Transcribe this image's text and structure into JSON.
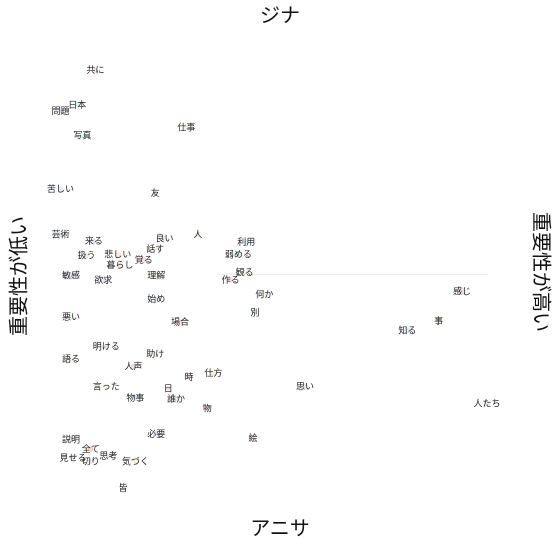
{
  "chart_data": {
    "type": "scatter",
    "title": "",
    "labels": {
      "top": "ジナ",
      "bottom": "アニサ",
      "left": "重要性が低い",
      "right": "重要性が高い"
    },
    "xlim": [
      0,
      10
    ],
    "ylim": [
      0,
      10
    ],
    "grid": false,
    "points": [
      {
        "label": "共に",
        "x": 1.45,
        "y": 9.26,
        "r": 0.2,
        "color": "#f0d8d8"
      },
      {
        "label": "日本",
        "x": 1.1,
        "y": 8.53,
        "r": 0.22,
        "color": "#d6f0f5"
      },
      {
        "label": "問題",
        "x": 0.78,
        "y": 8.4,
        "r": 0.2,
        "color": "#dbe6f6"
      },
      {
        "label": "写真",
        "x": 1.2,
        "y": 7.88,
        "r": 0.2,
        "color": "#d6f0f5"
      },
      {
        "label": "仕事",
        "x": 3.2,
        "y": 8.05,
        "r": 0.21,
        "color": "#dff3dc"
      },
      {
        "label": "苦しい",
        "x": 0.78,
        "y": 6.76,
        "r": 0.2,
        "color": "#dbe6f6"
      },
      {
        "label": "友",
        "x": 2.6,
        "y": 6.67,
        "r": 0.2,
        "color": "#f7dff0"
      },
      {
        "label": "芸術",
        "x": 0.78,
        "y": 5.8,
        "r": 0.2,
        "color": "#dbe6f6"
      },
      {
        "label": "来る",
        "x": 1.42,
        "y": 5.66,
        "r": 0.2,
        "color": "#e3dcef"
      },
      {
        "label": "良い",
        "x": 2.78,
        "y": 5.72,
        "r": 0.2,
        "color": "#e6e6e6"
      },
      {
        "label": "人",
        "x": 3.42,
        "y": 5.8,
        "r": 0.21,
        "color": "#f1f2d8"
      },
      {
        "label": "利用",
        "x": 4.35,
        "y": 5.64,
        "r": 0.21,
        "color": "#d6f0f5"
      },
      {
        "label": "話す",
        "x": 2.6,
        "y": 5.5,
        "r": 0.2,
        "color": "#f8e8d5"
      },
      {
        "label": "扱う",
        "x": 1.28,
        "y": 5.36,
        "r": 0.2,
        "color": "#e6e6e6"
      },
      {
        "label": "悲しい",
        "x": 1.88,
        "y": 5.38,
        "r": 0.22,
        "color": "#f8e8d5"
      },
      {
        "label": "暮らし",
        "x": 1.92,
        "y": 5.16,
        "r": 0.22,
        "color": "#f8e8d5"
      },
      {
        "label": "覚る",
        "x": 2.38,
        "y": 5.26,
        "r": 0.21,
        "color": "#fad7d7"
      },
      {
        "label": "弱める",
        "x": 4.2,
        "y": 5.38,
        "r": 0.22,
        "color": "#d6f0f5"
      },
      {
        "label": "観る",
        "x": 4.32,
        "y": 5.0,
        "r": 0.21,
        "color": "#dff3dc"
      },
      {
        "label": "敏感",
        "x": 0.98,
        "y": 4.94,
        "r": 0.21,
        "color": "#e3dcef"
      },
      {
        "label": "欲求",
        "x": 1.6,
        "y": 4.84,
        "r": 0.21,
        "color": "#dbe6f6"
      },
      {
        "label": "理解",
        "x": 2.62,
        "y": 4.94,
        "r": 0.21,
        "color": "#f1f2d8"
      },
      {
        "label": "作る",
        "x": 4.05,
        "y": 4.84,
        "r": 0.21,
        "color": "#fad7d7"
      },
      {
        "label": "感じ",
        "x": 8.5,
        "y": 4.6,
        "r": 0.28,
        "color": "#e6d8d8"
      },
      {
        "label": "何か",
        "x": 4.7,
        "y": 4.54,
        "r": 0.21,
        "color": "#f1f2d8"
      },
      {
        "label": "始め",
        "x": 2.62,
        "y": 4.44,
        "r": 0.21,
        "color": "#d6f0f5"
      },
      {
        "label": "別",
        "x": 4.52,
        "y": 4.16,
        "r": 0.21,
        "color": "#d6f0f5"
      },
      {
        "label": "悪い",
        "x": 0.98,
        "y": 4.06,
        "r": 0.2,
        "color": "#dff3dc"
      },
      {
        "label": "場合",
        "x": 3.08,
        "y": 3.96,
        "r": 0.21,
        "color": "#fad7d7"
      },
      {
        "label": "事",
        "x": 8.05,
        "y": 3.98,
        "r": 0.28,
        "color": "#f1f2d8"
      },
      {
        "label": "知る",
        "x": 7.45,
        "y": 3.78,
        "r": 0.26,
        "color": "#dbe6f6"
      },
      {
        "label": "明ける",
        "x": 1.66,
        "y": 3.44,
        "r": 0.21,
        "color": "#e6d8d8"
      },
      {
        "label": "語る",
        "x": 0.98,
        "y": 3.18,
        "r": 0.2,
        "color": "#dff3dc"
      },
      {
        "label": "助け",
        "x": 2.6,
        "y": 3.28,
        "r": 0.21,
        "color": "#f1f2d8"
      },
      {
        "label": "人声",
        "x": 2.18,
        "y": 3.02,
        "r": 0.21,
        "color": "#e6d8d8"
      },
      {
        "label": "仕方",
        "x": 3.72,
        "y": 2.88,
        "r": 0.21,
        "color": "#f8e8d5"
      },
      {
        "label": "時",
        "x": 3.25,
        "y": 2.8,
        "r": 0.21,
        "color": "#f7dff0"
      },
      {
        "label": "思い",
        "x": 5.48,
        "y": 2.6,
        "r": 0.23,
        "color": "#e3dcef"
      },
      {
        "label": "言った",
        "x": 1.66,
        "y": 2.6,
        "r": 0.21,
        "color": "#dff3dc"
      },
      {
        "label": "日",
        "x": 2.85,
        "y": 2.56,
        "r": 0.2,
        "color": "#f7dff0"
      },
      {
        "label": "物事",
        "x": 2.22,
        "y": 2.36,
        "r": 0.21,
        "color": "#dbe6f6"
      },
      {
        "label": "誰か",
        "x": 3.0,
        "y": 2.34,
        "r": 0.21,
        "color": "#e6e6e6"
      },
      {
        "label": "人たち",
        "x": 8.98,
        "y": 2.24,
        "r": 0.28,
        "color": "#e6e6e6"
      },
      {
        "label": "物",
        "x": 3.6,
        "y": 2.14,
        "r": 0.21,
        "color": "#fad7d7"
      },
      {
        "label": "必要",
        "x": 2.62,
        "y": 1.6,
        "r": 0.21,
        "color": "#e3dcef"
      },
      {
        "label": "絵",
        "x": 4.48,
        "y": 1.52,
        "r": 0.21,
        "color": "#f7dff0"
      },
      {
        "label": "説明",
        "x": 0.98,
        "y": 1.48,
        "r": 0.2,
        "color": "#e3dcef"
      },
      {
        "label": "全て",
        "x": 1.36,
        "y": 1.28,
        "r": 0.21,
        "color": "#f8c9b6"
      },
      {
        "label": "思考",
        "x": 1.7,
        "y": 1.14,
        "r": 0.21,
        "color": "#e6e6e6"
      },
      {
        "label": "見せる",
        "x": 1.02,
        "y": 1.1,
        "r": 0.2,
        "color": "#e6e6e6"
      },
      {
        "label": "切り",
        "x": 1.36,
        "y": 1.02,
        "r": 0.2,
        "color": "#f7dff0"
      },
      {
        "label": "気づく",
        "x": 2.22,
        "y": 1.02,
        "r": 0.21,
        "color": "#f8e8d5"
      },
      {
        "label": "皆",
        "x": 1.98,
        "y": 0.46,
        "r": 0.2,
        "color": "#dff3dc"
      }
    ],
    "reference_line": {
      "y": 4.96,
      "x_from": 3.8,
      "x_to": 9.0,
      "color": "#ececec"
    }
  }
}
